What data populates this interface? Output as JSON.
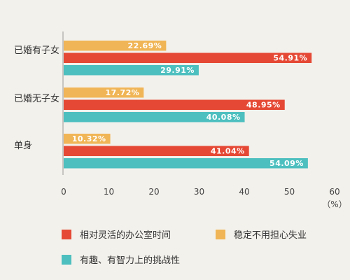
{
  "chart_data": {
    "type": "bar",
    "orientation": "horizontal",
    "categories": [
      "已婚有子女",
      "已婚无子女",
      "单身"
    ],
    "series": [
      {
        "name": "稳定不用担心失业",
        "color": "#f0b556",
        "values": [
          22.69,
          17.72,
          10.32
        ]
      },
      {
        "name": "相对灵活的办公室时间",
        "color": "#e54935",
        "values": [
          54.91,
          48.95,
          41.04
        ]
      },
      {
        "name": "有趣、有智力上的挑战性",
        "color": "#4dbfbf",
        "values": [
          29.91,
          40.08,
          54.09
        ]
      }
    ],
    "value_labels": [
      [
        "22.69%",
        "17.72%",
        "10.32%"
      ],
      [
        "54.91%",
        "48.95%",
        "41.04%"
      ],
      [
        "29.91%",
        "40.08%",
        "54.09%"
      ]
    ],
    "xlim": [
      0,
      60
    ],
    "xticks": [
      "0",
      "10",
      "20",
      "30",
      "40",
      "50",
      "60"
    ],
    "x_unit": "（%）",
    "legend": {
      "placement": "bottom",
      "items": [
        {
          "label": "相对灵活的办公室时间",
          "color": "#e54935"
        },
        {
          "label": "稳定不用担心失业",
          "color": "#f0b556"
        },
        {
          "label": "有趣、有智力上的挑战性",
          "color": "#4dbfbf"
        }
      ]
    }
  }
}
